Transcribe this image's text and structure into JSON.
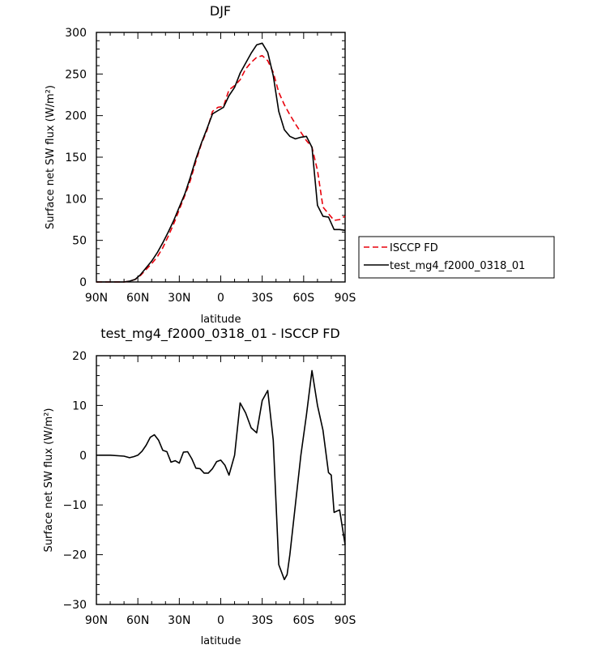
{
  "chart_data": [
    {
      "type": "line",
      "title": "DJF",
      "xlabel": "latitude",
      "ylabel": "Surface net SW flux (W/m²)",
      "xlim": [
        90,
        -90
      ],
      "ylim": [
        0,
        300
      ],
      "xticks": [
        90,
        60,
        30,
        0,
        -30,
        -60,
        -90
      ],
      "xtick_labels": [
        "90N",
        "60N",
        "30N",
        "0",
        "30S",
        "60S",
        "90S"
      ],
      "yticks": [
        0,
        50,
        100,
        150,
        200,
        250,
        300
      ],
      "ytick_labels": [
        "0",
        "50",
        "100",
        "150",
        "200",
        "250",
        "300"
      ],
      "grid": false,
      "legend_position": "outside-right",
      "series": [
        {
          "name": "ISCCP FD",
          "color": "#e8000b",
          "dash": "dashed",
          "x": [
            90,
            80,
            70,
            66,
            62,
            58,
            54,
            50,
            46,
            42,
            38,
            34,
            30,
            26,
            22,
            18,
            14,
            10,
            6,
            2,
            -2,
            -6,
            -10,
            -14,
            -18,
            -22,
            -26,
            -30,
            -34,
            -38,
            -42,
            -46,
            -50,
            -54,
            -58,
            -62,
            -66,
            -70,
            -74,
            -78,
            -82,
            -86,
            -90
          ],
          "values": [
            0,
            0,
            0,
            1,
            3,
            8,
            15,
            22,
            30,
            41,
            55,
            70,
            87,
            104,
            122,
            145,
            166,
            182,
            205,
            210,
            211,
            231,
            236,
            243,
            256,
            264,
            270,
            272,
            266,
            252,
            228,
            213,
            201,
            190,
            180,
            170,
            162,
            134,
            90,
            82,
            74,
            75,
            79
          ]
        },
        {
          "name": "test_mg4_f2000_0318_01",
          "color": "#000000",
          "dash": "solid",
          "x": [
            90,
            80,
            70,
            66,
            62,
            58,
            54,
            50,
            46,
            42,
            38,
            34,
            30,
            26,
            22,
            18,
            14,
            10,
            6,
            2,
            -2,
            -6,
            -10,
            -14,
            -18,
            -22,
            -26,
            -30,
            -34,
            -38,
            -42,
            -46,
            -50,
            -54,
            -58,
            -62,
            -66,
            -70,
            -74,
            -78,
            -82,
            -86,
            -90
          ],
          "values": [
            0,
            0,
            0,
            1,
            3,
            9,
            17,
            25,
            35,
            47,
            60,
            74,
            90,
            106,
            126,
            148,
            167,
            184,
            202,
            206,
            210,
            224,
            234,
            251,
            263,
            275,
            285,
            287,
            276,
            248,
            205,
            183,
            175,
            172,
            174,
            175,
            162,
            92,
            79,
            78,
            63,
            63,
            62
          ]
        }
      ]
    },
    {
      "type": "line",
      "title": "test_mg4_f2000_0318_01 - ISCCP FD",
      "xlabel": "latitude",
      "ylabel": "Surface net SW flux (W/m²)",
      "xlim": [
        90,
        -90
      ],
      "ylim": [
        -30,
        20
      ],
      "xticks": [
        90,
        60,
        30,
        0,
        -30,
        -60,
        -90
      ],
      "xtick_labels": [
        "90N",
        "60N",
        "30N",
        "0",
        "30S",
        "60S",
        "90S"
      ],
      "yticks": [
        -30,
        -20,
        -10,
        0,
        10,
        20
      ],
      "ytick_labels": [
        "−30",
        "−20",
        "−10",
        "0",
        "10",
        "20"
      ],
      "grid": false,
      "series": [
        {
          "color": "#000000",
          "dash": "solid",
          "x": [
            90,
            80,
            70,
            66,
            63,
            60,
            57,
            54,
            51,
            48,
            45,
            42,
            39,
            36,
            33,
            30,
            27,
            24,
            21,
            18,
            15,
            12,
            9,
            6,
            3,
            0,
            -3,
            -6,
            -10,
            -14,
            -18,
            -22,
            -26,
            -30,
            -34,
            -38,
            -42,
            -46,
            -48,
            -50,
            -54,
            -58,
            -62,
            -66,
            -70,
            -74,
            -78,
            -80,
            -82,
            -86,
            -90
          ],
          "values": [
            0,
            0,
            -0.2,
            -0.5,
            -0.3,
            0,
            0.8,
            2,
            3.6,
            4.1,
            3,
            1,
            0.7,
            -1.4,
            -1.1,
            -1.6,
            0.6,
            0.7,
            -0.7,
            -2.6,
            -2.7,
            -3.6,
            -3.6,
            -2.7,
            -1.3,
            -1,
            -2,
            -4,
            0,
            10.5,
            8.5,
            5.5,
            4.5,
            11,
            13,
            3,
            -22,
            -25,
            -24,
            -20,
            -10,
            0,
            8,
            17,
            10,
            5,
            -3.5,
            -4,
            -11.5,
            -11,
            -18
          ]
        }
      ]
    }
  ]
}
